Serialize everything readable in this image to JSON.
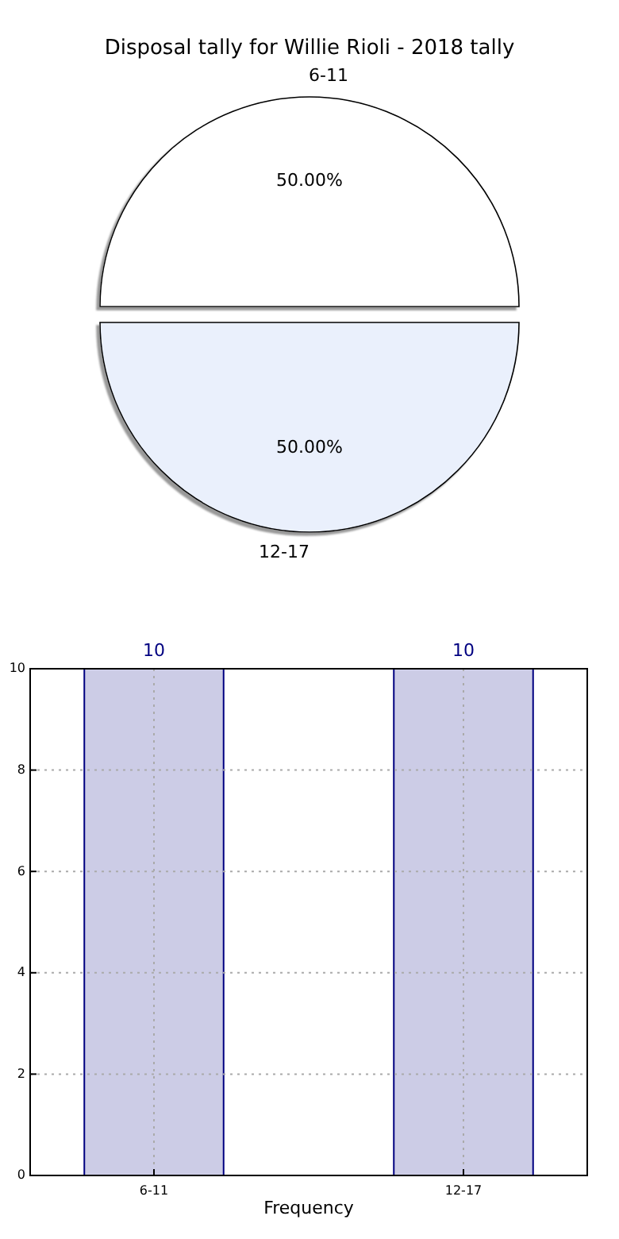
{
  "chart_data": [
    {
      "type": "pie",
      "title": "Disposal tally for Willie Rioli - 2018 tally",
      "categories": [
        "6-11",
        "12-17"
      ],
      "values": [
        50,
        50
      ],
      "colors": [
        "#ffffff",
        "#eaf0fc"
      ],
      "value_labels": [
        "50.00%",
        "50.00%"
      ]
    },
    {
      "type": "bar",
      "xlabel": "Frequency",
      "categories": [
        "6-11",
        "12-17"
      ],
      "values": [
        10,
        10
      ],
      "color": "#cccce6",
      "ylim": [
        0,
        10
      ],
      "yticks": [
        0,
        2,
        4,
        6,
        8,
        10
      ],
      "grid": true,
      "data_labels": true
    }
  ]
}
